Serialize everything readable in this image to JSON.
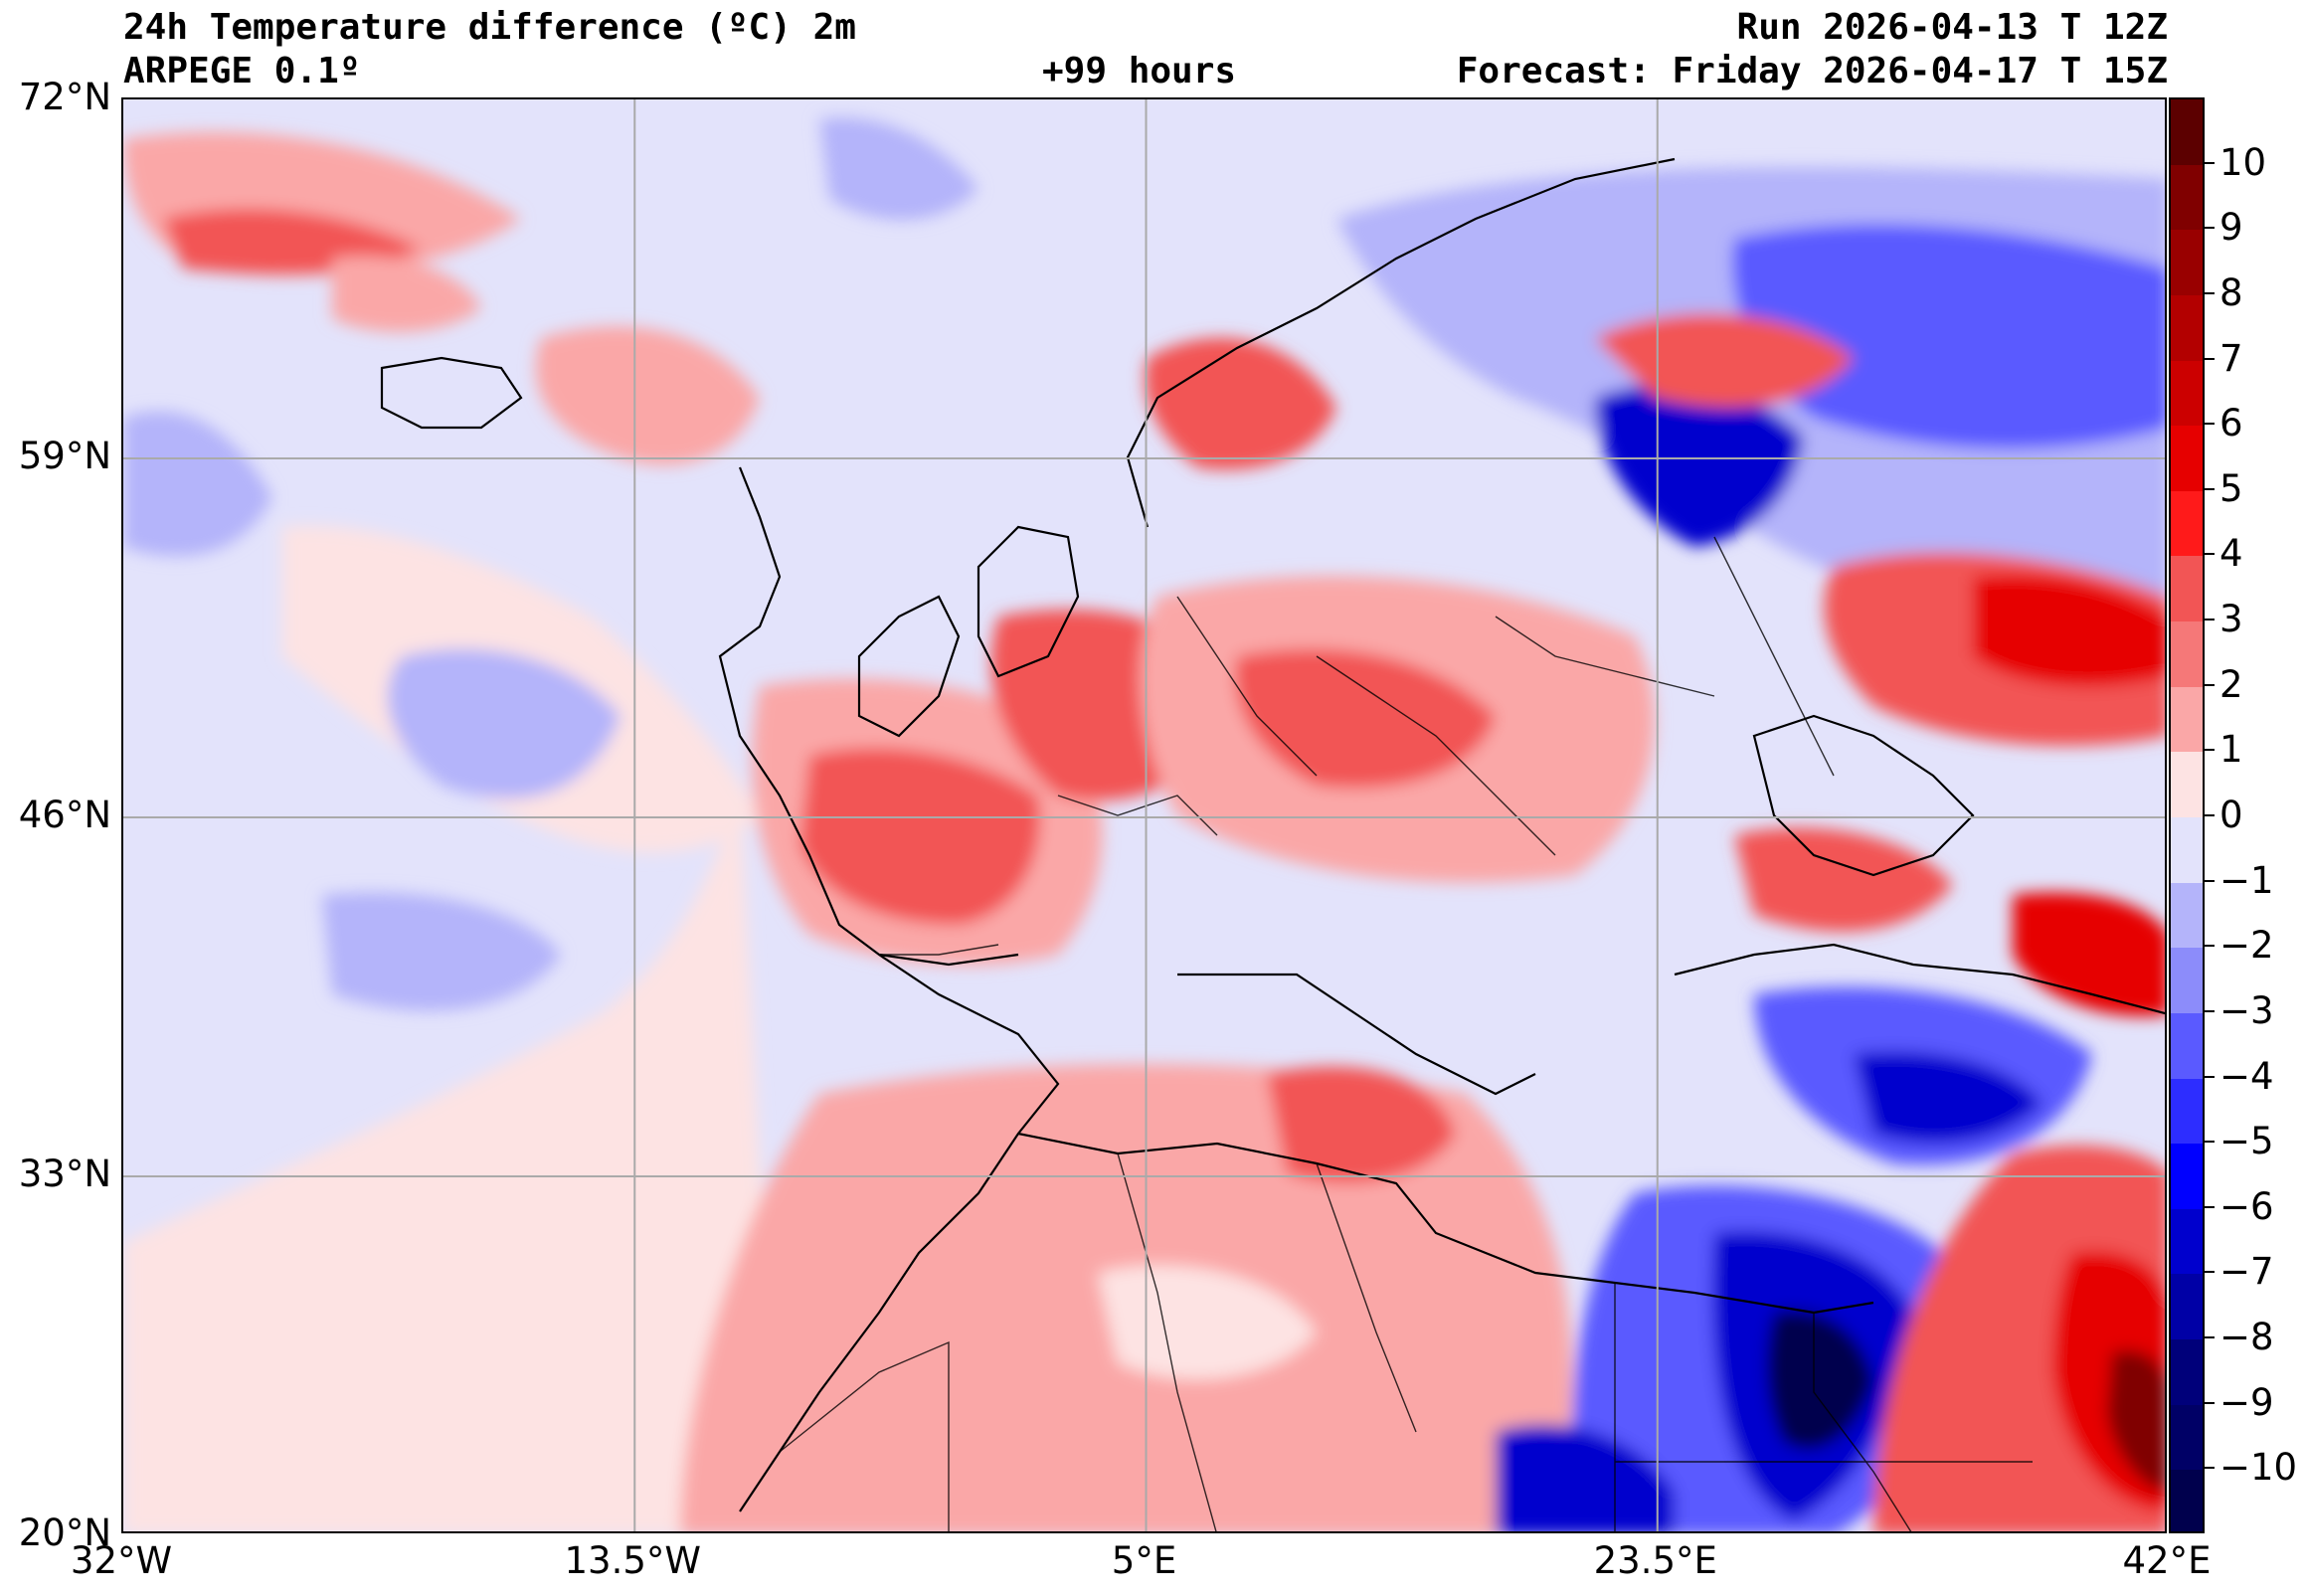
{
  "header": {
    "title_line1": "24h Temperature difference (ºC) 2m",
    "title_line2": "ARPEGE 0.1º",
    "lead_time": "+99 hours",
    "run": "Run 2026-04-13 T 12Z",
    "forecast": "Forecast: Friday 2026-04-17 T 15Z"
  },
  "map": {
    "extent": {
      "lon_min": -32,
      "lon_max": 42,
      "lat_min": 20,
      "lat_max": 72
    },
    "lat_ticks": [
      {
        "value": 72,
        "label": "72°N"
      },
      {
        "value": 59,
        "label": "59°N"
      },
      {
        "value": 46,
        "label": "46°N"
      },
      {
        "value": 33,
        "label": "33°N"
      },
      {
        "value": 20,
        "label": "20°N"
      }
    ],
    "lon_ticks": [
      {
        "value": -32,
        "label": "32°W"
      },
      {
        "value": -13.5,
        "label": "13.5°W"
      },
      {
        "value": 5,
        "label": "5°E"
      },
      {
        "value": 23.5,
        "label": "23.5°E"
      },
      {
        "value": 42,
        "label": "42°E"
      }
    ],
    "gridlines": true
  },
  "colorbar": {
    "min": -11,
    "max": 11,
    "ticks": [
      {
        "value": 10,
        "label": "10"
      },
      {
        "value": 9,
        "label": "9"
      },
      {
        "value": 8,
        "label": "8"
      },
      {
        "value": 7,
        "label": "7"
      },
      {
        "value": 6,
        "label": "6"
      },
      {
        "value": 5,
        "label": "5"
      },
      {
        "value": 4,
        "label": "4"
      },
      {
        "value": 3,
        "label": "3"
      },
      {
        "value": 2,
        "label": "2"
      },
      {
        "value": 1,
        "label": "1"
      },
      {
        "value": 0,
        "label": "0"
      },
      {
        "value": -1,
        "label": "−1"
      },
      {
        "value": -2,
        "label": "−2"
      },
      {
        "value": -3,
        "label": "−3"
      },
      {
        "value": -4,
        "label": "−4"
      },
      {
        "value": -5,
        "label": "−5"
      },
      {
        "value": -6,
        "label": "−6"
      },
      {
        "value": -7,
        "label": "−7"
      },
      {
        "value": -8,
        "label": "−8"
      },
      {
        "value": -9,
        "label": "−9"
      },
      {
        "value": -10,
        "label": "−10"
      }
    ],
    "colors": {
      "neg_extreme": "#00004d",
      "neg_strong": "#0000cd",
      "neg_mid": "#5a5aff",
      "neg_light": "#b4b4fa",
      "neg_faint": "#e3e3fb",
      "pos_faint": "#fde3e3",
      "pos_light": "#faa7a7",
      "pos_mid": "#f25555",
      "pos_strong": "#e60000",
      "pos_extreme": "#800000"
    }
  }
}
